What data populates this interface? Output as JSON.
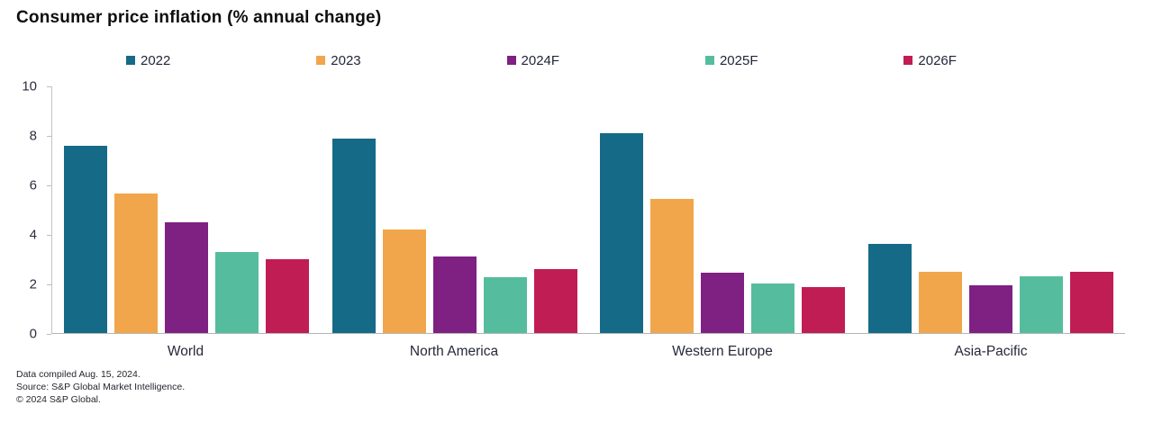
{
  "title": "Consumer price inflation (% annual change)",
  "footer": {
    "line1": "Data compiled Aug. 15, 2024.",
    "line2": "Source: S&P Global Market Intelligence.",
    "line3": "© 2024 S&P Global."
  },
  "chart_data": {
    "type": "bar",
    "title": "Consumer price inflation (% annual change)",
    "categories": [
      "World",
      "North America",
      "Western Europe",
      "Asia-Pacific"
    ],
    "series": [
      {
        "name": "2022",
        "color": "#156a87",
        "values": [
          7.6,
          7.9,
          8.1,
          3.6
        ]
      },
      {
        "name": "2023",
        "color": "#f2a64c",
        "values": [
          5.65,
          4.2,
          5.45,
          2.5
        ]
      },
      {
        "name": "2024F",
        "color": "#7e2183",
        "values": [
          4.5,
          3.1,
          2.45,
          1.95
        ]
      },
      {
        "name": "2025F",
        "color": "#55bd9d",
        "values": [
          3.3,
          2.25,
          2.0,
          2.3
        ]
      },
      {
        "name": "2026F",
        "color": "#c01d55",
        "values": [
          3.0,
          2.6,
          1.85,
          2.5
        ]
      }
    ],
    "ylim": [
      0,
      10
    ],
    "yticks": [
      0,
      2,
      4,
      6,
      8,
      10
    ],
    "ylabel": "",
    "xlabel": "",
    "legend_position": "top",
    "grid": false,
    "axis_color": "#c4c4c4",
    "tick_label_color": "#2b2e3f"
  }
}
